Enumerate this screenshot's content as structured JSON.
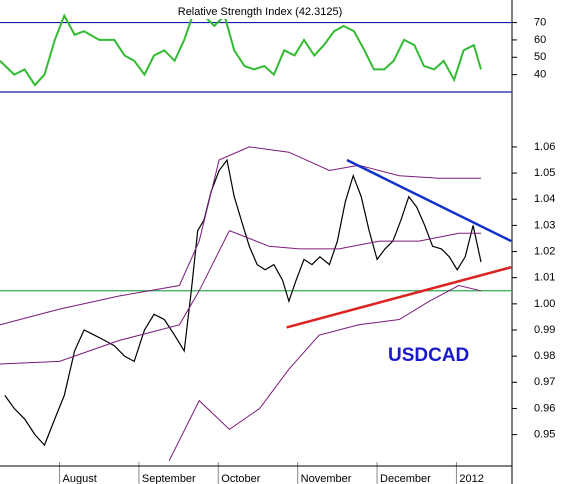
{
  "chart_data": [
    {
      "type": "line",
      "title": "Relative Strength Index (42.3125)",
      "xlim": [
        0.25,
        6.7
      ],
      "ylim": [
        30,
        83
      ],
      "yticks": [
        70,
        60,
        50,
        40
      ],
      "reference_lines": [
        70,
        30
      ],
      "reference_color": "#1a1aa8",
      "series": [
        {
          "color": "#33bb33",
          "x": [
            0.25,
            0.43,
            0.56,
            0.69,
            0.81,
            0.94,
            1.06,
            1.19,
            1.31,
            1.5,
            1.69,
            1.82,
            1.94,
            2.07,
            2.19,
            2.32,
            2.45,
            2.57,
            2.7,
            2.82,
            2.95,
            3.08,
            3.2,
            3.33,
            3.45,
            3.58,
            3.7,
            3.83,
            3.96,
            4.08,
            4.21,
            4.33,
            4.46,
            4.58,
            4.71,
            4.84,
            4.96,
            5.09,
            5.21,
            5.34,
            5.47,
            5.59,
            5.72,
            5.84,
            5.97,
            6.09,
            6.22,
            6.31
          ],
          "values": [
            48,
            40,
            43,
            34,
            40,
            60,
            74,
            63,
            65,
            60,
            60,
            51,
            48,
            40,
            51,
            54,
            48,
            60,
            77,
            74,
            68,
            74,
            54,
            45,
            43,
            45,
            40,
            54,
            51,
            60,
            51,
            57,
            65,
            68,
            65,
            54,
            43,
            43,
            48,
            60,
            57,
            45,
            43,
            48,
            37,
            54,
            57,
            43
          ]
        }
      ]
    },
    {
      "type": "line",
      "annotation": "USDCAD",
      "xlim": [
        0.25,
        6.7
      ],
      "ylim": [
        0.938,
        1.081
      ],
      "yticks": [
        1.06,
        1.05,
        1.04,
        1.03,
        1.02,
        1.01,
        {
          "value": 1,
          "label": "1.00"
        },
        0.99,
        0.98,
        0.97,
        0.96,
        0.95
      ],
      "xticks": [
        {
          "value": 1,
          "label": "August"
        },
        {
          "value": 2,
          "label": "September"
        },
        {
          "value": 3,
          "label": "October"
        },
        {
          "value": 4,
          "label": "November"
        },
        {
          "value": 5,
          "label": "December"
        },
        {
          "value": 6,
          "label": "2012"
        }
      ],
      "reference_lines": [
        1.005
      ],
      "reference_color": "#33aa55",
      "series": [
        {
          "color": "#000000",
          "x": [
            0.31,
            0.43,
            0.56,
            0.69,
            0.81,
            0.94,
            1.06,
            1.19,
            1.31,
            1.44,
            1.57,
            1.69,
            1.82,
            1.94,
            2.07,
            2.19,
            2.32,
            2.45,
            2.57,
            2.66,
            2.74,
            2.82,
            2.91,
            3.01,
            3.11,
            3.2,
            3.29,
            3.39,
            3.49,
            3.59,
            3.7,
            3.81,
            3.89,
            3.98,
            4.08,
            4.18,
            4.28,
            4.4,
            4.5,
            4.6,
            4.7,
            4.8,
            4.9,
            5.0,
            5.1,
            5.2,
            5.3,
            5.4,
            5.5,
            5.6,
            5.7,
            5.81,
            5.91,
            6.01,
            6.11,
            6.21,
            6.31
          ],
          "values": [
            0.965,
            0.96,
            0.956,
            0.95,
            0.946,
            0.956,
            0.965,
            0.982,
            0.99,
            0.988,
            0.986,
            0.984,
            0.98,
            0.978,
            0.99,
            0.996,
            0.994,
            0.988,
            0.982,
            1.005,
            1.028,
            1.032,
            1.043,
            1.051,
            1.055,
            1.041,
            1.032,
            1.022,
            1.015,
            1.013,
            1.015,
            1.009,
            1.001,
            1.009,
            1.017,
            1.015,
            1.018,
            1.015,
            1.024,
            1.039,
            1.049,
            1.041,
            1.028,
            1.017,
            1.021,
            1.024,
            1.032,
            1.041,
            1.037,
            1.03,
            1.022,
            1.021,
            1.018,
            1.013,
            1.018,
            1.03,
            1.016
          ]
        },
        {
          "color": "#7a1a7a",
          "x": [
            0.25,
            1.0,
            1.75,
            2.51,
            2.76,
            3.01,
            3.39,
            3.89,
            4.4,
            4.77,
            5.28,
            5.78,
            6.31
          ],
          "values": [
            0.992,
            0.998,
            1.003,
            1.007,
            1.024,
            1.055,
            1.06,
            1.058,
            1.051,
            1.053,
            1.049,
            1.048,
            1.048
          ]
        },
        {
          "color": "#7a1a7a",
          "x": [
            0.25,
            1.0,
            1.75,
            2.51,
            2.76,
            3.14,
            3.64,
            4.02,
            4.52,
            5.03,
            5.53,
            6.03,
            6.31
          ],
          "values": [
            0.977,
            0.978,
            0.986,
            0.992,
            1.005,
            1.028,
            1.022,
            1.021,
            1.021,
            1.024,
            1.024,
            1.027,
            1.027
          ]
        },
        {
          "color": "#7a1a7a",
          "x": [
            2.38,
            2.76,
            3.14,
            3.52,
            3.89,
            4.27,
            4.77,
            5.28,
            5.66,
            6.03,
            6.31
          ],
          "values": [
            0.94,
            0.963,
            0.952,
            0.96,
            0.975,
            0.988,
            0.992,
            0.994,
            1.001,
            1.007,
            1.005
          ]
        }
      ],
      "trend_lines": [
        {
          "color": "#1133cc",
          "x": [
            4.62,
            6.69
          ],
          "values": [
            1.055,
            1.024
          ]
        },
        {
          "color": "#dd2222",
          "x": [
            3.86,
            6.69
          ],
          "values": [
            0.991,
            1.014
          ]
        }
      ]
    }
  ]
}
